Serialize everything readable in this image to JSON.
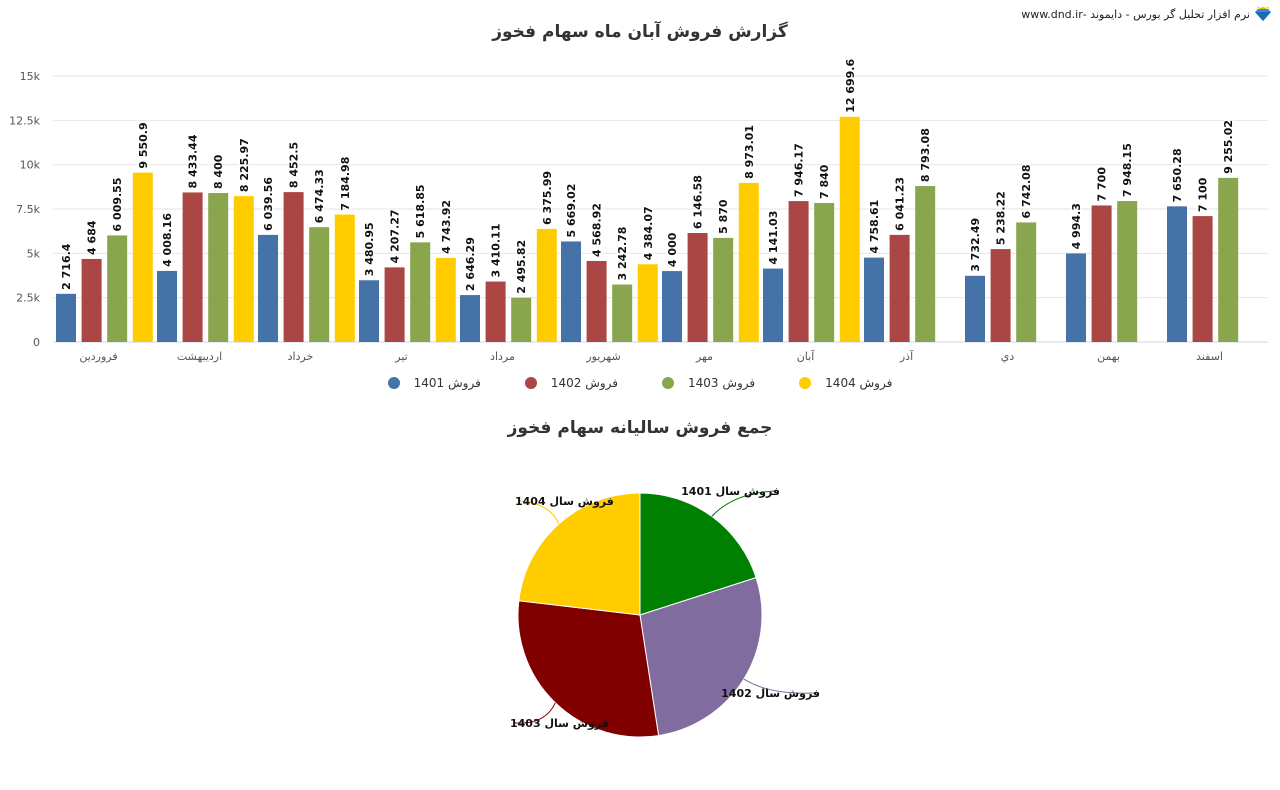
{
  "header": {
    "brand_text": "نرم افزار تحلیل گر بورس - دایموند -www.dnd.ir",
    "icon": "diamond-icon"
  },
  "chart_data": [
    {
      "type": "bar",
      "title": "گزارش فروش آبان ماه سهام فخوز",
      "categories": [
        "فروردین",
        "اردیبهشت",
        "خرداد",
        "تیر",
        "مرداد",
        "شهریور",
        "مهر",
        "آبان",
        "آذر",
        "دي",
        "بهمن",
        "اسفند"
      ],
      "ylim": [
        0,
        15000
      ],
      "yticks": [
        "0",
        "2.5k",
        "5k",
        "7.5k",
        "10k",
        "12.5k",
        "15k"
      ],
      "ytick_values": [
        0,
        2500,
        5000,
        7500,
        10000,
        12500,
        15000
      ],
      "grid": true,
      "legend": "bottom",
      "series": [
        {
          "name": "فروش 1401",
          "color": "#4572a7",
          "values": [
            2716.4,
            4008.16,
            6039.56,
            3480.95,
            2646.29,
            5669.02,
            4000,
            4141.03,
            4758.61,
            3732.49,
            4994.3,
            7650.28
          ]
        },
        {
          "name": "فروش 1402",
          "color": "#aa4643",
          "values": [
            4684,
            8433.44,
            8452.5,
            4207.27,
            3410.11,
            4568.92,
            6146.58,
            7946.17,
            6041.23,
            5238.22,
            7700,
            7100
          ]
        },
        {
          "name": "فروش 1403",
          "color": "#89a54e",
          "values": [
            6009.55,
            8400,
            6474.33,
            5618.85,
            2495.82,
            3242.78,
            5870,
            7840,
            8793.08,
            6742.08,
            7948.15,
            9255.02
          ]
        },
        {
          "name": "فروش 1404",
          "color": "#ffcc00",
          "values": [
            9550.9,
            8225.97,
            7184.98,
            4743.92,
            6375.99,
            4384.07,
            8973.01,
            12699.6,
            null,
            null,
            null,
            null
          ]
        }
      ]
    },
    {
      "type": "pie",
      "title": "جمع فروش سالیانه سهام فخوز",
      "slices": [
        {
          "label": "فروش سال 1401",
          "value": 53836,
          "color": "#008000"
        },
        {
          "label": "فروش سال 1402",
          "value": 73928,
          "color": "#806c9e"
        },
        {
          "label": "فروش سال 1403",
          "value": 78690,
          "color": "#800000"
        },
        {
          "label": "فروش سال 1404",
          "value": 62139,
          "color": "#ffcc00"
        }
      ]
    }
  ]
}
